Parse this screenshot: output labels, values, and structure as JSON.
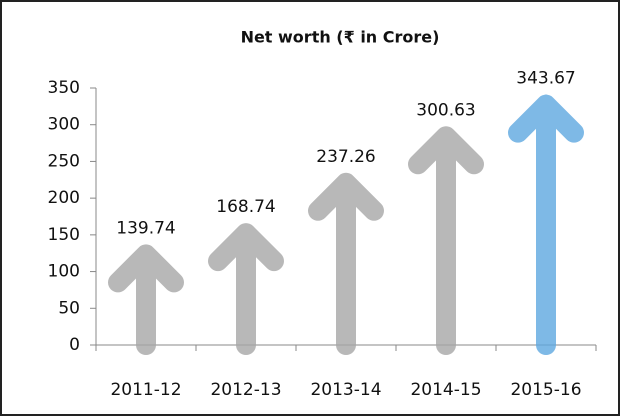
{
  "chart_data": {
    "type": "arrow-bar",
    "title": "Net worth (₹ in Crore)",
    "categories": [
      "2011-12",
      "2012-13",
      "2013-14",
      "2014-15",
      "2015-16"
    ],
    "values": [
      139.74,
      168.74,
      237.26,
      300.63,
      343.67
    ],
    "colors": [
      "#a6a6a6",
      "#a6a6a6",
      "#a6a6a6",
      "#a6a6a6",
      "#5ea7e0"
    ],
    "ylim": [
      0,
      350
    ],
    "yticks": [
      0,
      50,
      100,
      150,
      200,
      250,
      300,
      350
    ]
  }
}
